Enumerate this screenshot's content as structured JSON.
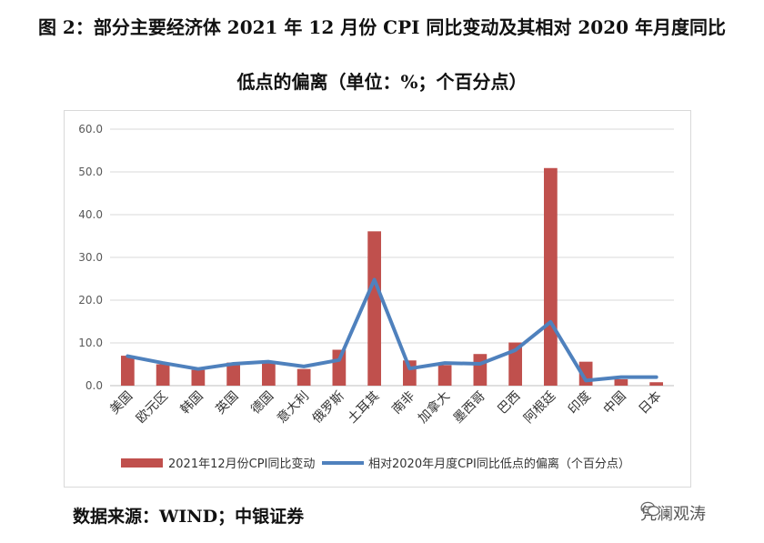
{
  "title_line1": "图 2：部分主要经济体 2021 年 12 月份 CPI 同比变动及其相对 2020 年月度同比",
  "title_line2": "低点的偏离（单位：%；个百分点）",
  "source": "数据来源：WIND；中银证券",
  "watermark": "凭澜观涛",
  "watermark_icon": "wechat-icon",
  "chart_data": {
    "type": "bar",
    "categories": [
      "美国",
      "欧元区",
      "韩国",
      "英国",
      "德国",
      "意大利",
      "俄罗斯",
      "土耳其",
      "南非",
      "加拿大",
      "墨西哥",
      "巴西",
      "阿根廷",
      "印度",
      "中国",
      "日本"
    ],
    "series": [
      {
        "name": "2021年12月份CPI同比变动",
        "type": "bar",
        "color": "#c0504d",
        "values": [
          7.0,
          5.0,
          3.7,
          5.4,
          5.3,
          3.9,
          8.4,
          36.1,
          5.9,
          4.8,
          7.4,
          10.1,
          50.9,
          5.6,
          1.5,
          0.8
        ]
      },
      {
        "name": "相对2020年月度CPI同比低点的偏离（个百分点）",
        "type": "line",
        "color": "#4f81bd",
        "values": [
          6.9,
          5.3,
          3.9,
          5.1,
          5.6,
          4.5,
          6.0,
          24.8,
          4.0,
          5.3,
          5.1,
          8.3,
          14.9,
          1.2,
          2.0,
          2.0
        ]
      }
    ],
    "ylim": [
      0,
      60
    ],
    "yticks": [
      "0.0",
      "10.0",
      "20.0",
      "30.0",
      "40.0",
      "50.0",
      "60.0"
    ],
    "grid": true,
    "legend": "bottom"
  }
}
